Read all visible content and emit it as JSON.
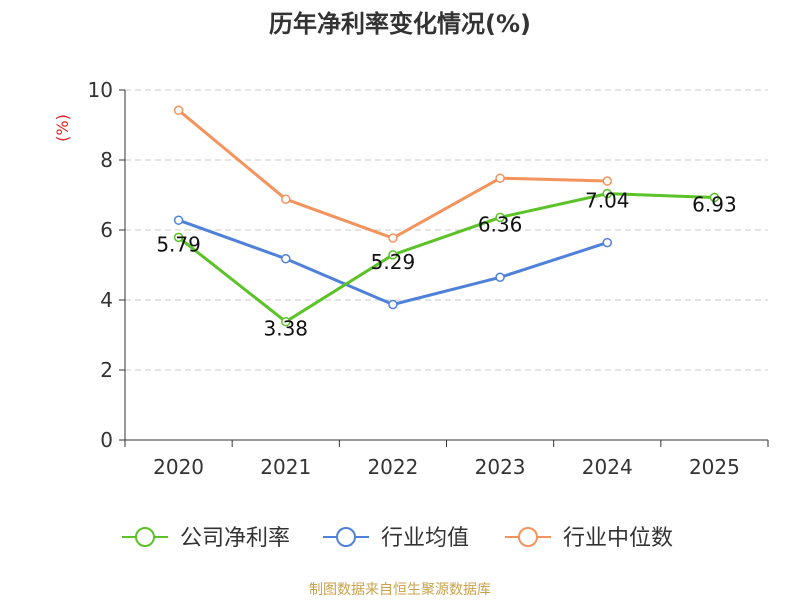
{
  "chart_data": {
    "type": "line",
    "title": "历年净利率变化情况(%)",
    "ylabel": "(%)",
    "xlabel": "",
    "categories": [
      "2020",
      "2021",
      "2022",
      "2023",
      "2024",
      "2025"
    ],
    "ylim": [
      0,
      10
    ],
    "yticks": [
      0,
      2,
      4,
      6,
      8,
      10
    ],
    "grid": true,
    "legend_position": "bottom",
    "series": [
      {
        "name": "公司净利率",
        "color": "#5bc228",
        "values": [
          5.79,
          3.38,
          5.29,
          6.36,
          7.04,
          6.93
        ],
        "show_labels": true
      },
      {
        "name": "行业均值",
        "color": "#4f81d9",
        "values": [
          6.28,
          5.18,
          3.87,
          4.65,
          5.64,
          null
        ],
        "show_labels": false
      },
      {
        "name": "行业中位数",
        "color": "#f5935d",
        "values": [
          9.42,
          6.88,
          5.77,
          7.48,
          7.4,
          null
        ],
        "show_labels": false
      }
    ],
    "source": "制图数据来自恒生聚源数据库"
  }
}
